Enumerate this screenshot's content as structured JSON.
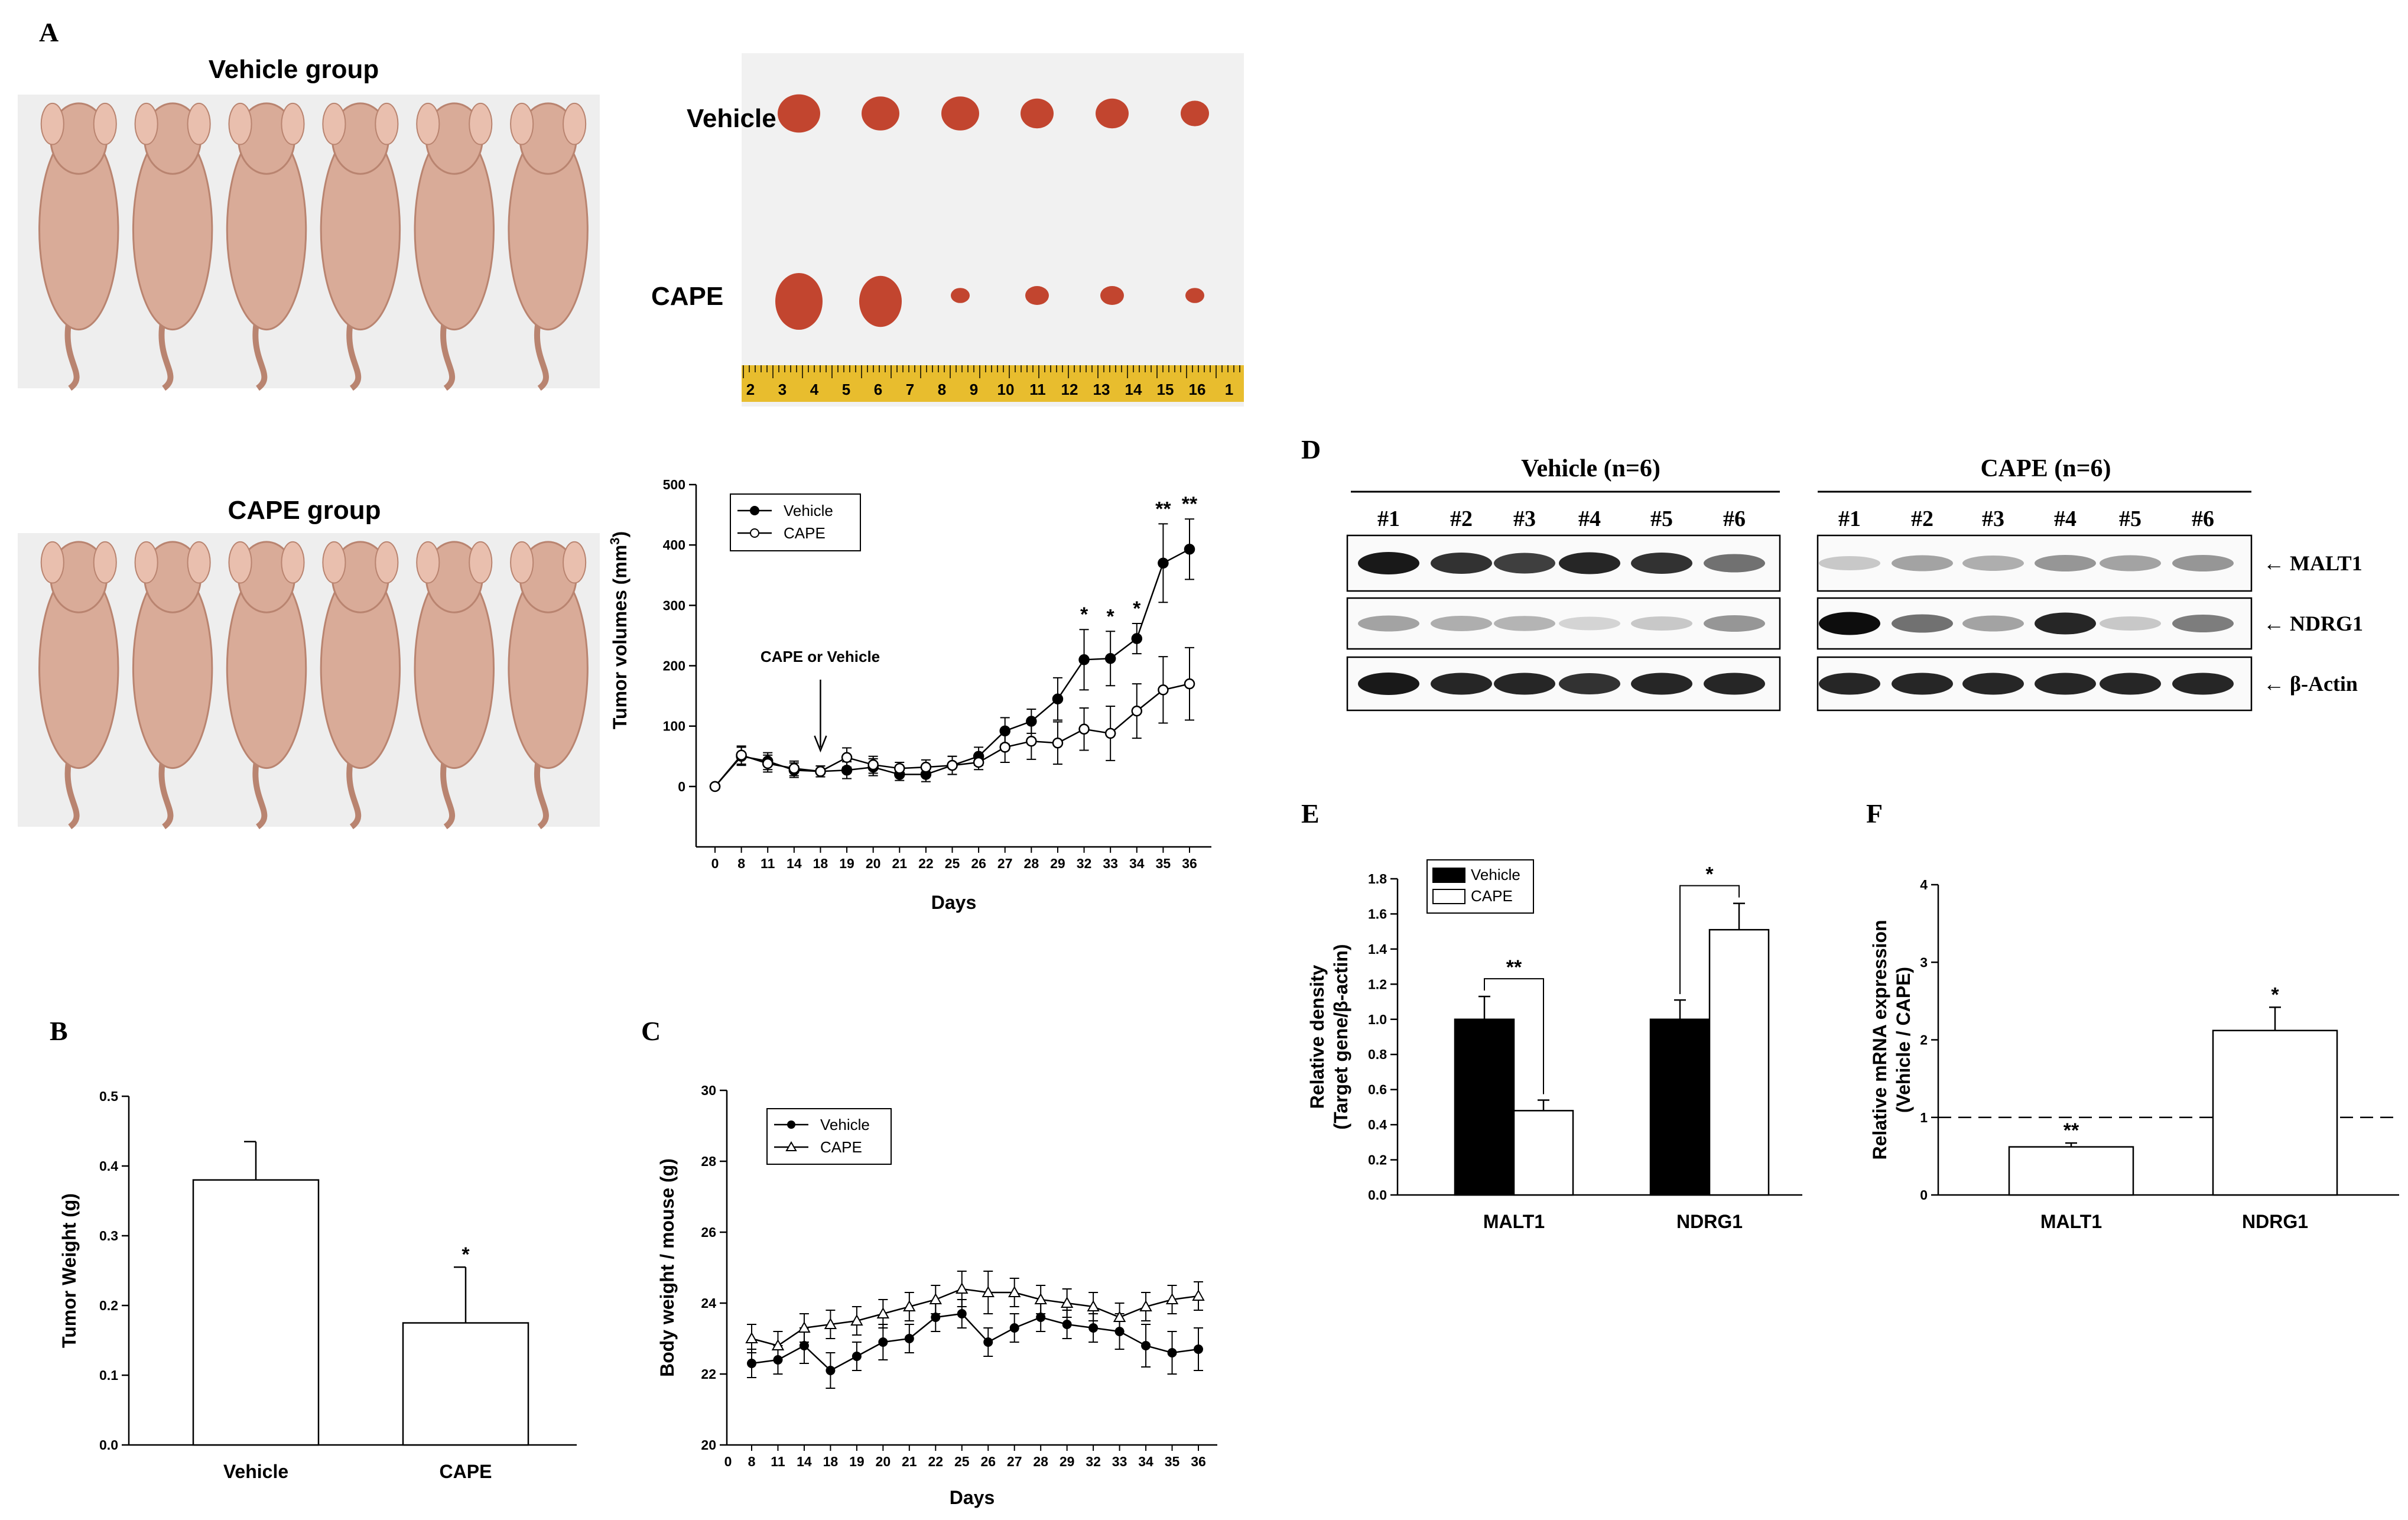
{
  "colors": {
    "skin": "#d9ab98",
    "skin_dark": "#b98470",
    "photo_bg": "#eeeeee",
    "tumor": "#c2452f",
    "ruler": "#e8bd2e",
    "black": "#000000"
  },
  "panel_a": {
    "letter": "A",
    "vehicle_group_title": "Vehicle group",
    "cape_group_title": "CAPE group",
    "tumor_row_vehicle": "Vehicle",
    "tumor_row_cape": "CAPE",
    "ruler_numbers": [
      "2",
      "3",
      "4",
      "5",
      "6",
      "7",
      "8",
      "9",
      "10",
      "11",
      "12",
      "13",
      "14",
      "15",
      "16",
      "1"
    ],
    "annotation": "CAPE or Vehicle"
  },
  "panel_b": {
    "letter": "B"
  },
  "panel_c": {
    "letter": "C"
  },
  "panel_d": {
    "letter": "D",
    "group_vehicle": "Vehicle (n=6)",
    "group_cape": "CAPE (n=6)",
    "lanes": [
      "#1",
      "#2",
      "#3",
      "#4",
      "#5",
      "#6"
    ],
    "proteins": [
      "← MALT1",
      "← NDRG1",
      "← β-Actin"
    ],
    "band_intensity": {
      "vehicle": [
        [
          0.9,
          0.8,
          0.75,
          0.85,
          0.8,
          0.55
        ],
        [
          0.35,
          0.3,
          0.28,
          0.15,
          0.2,
          0.4
        ],
        [
          0.9,
          0.85,
          0.85,
          0.8,
          0.85,
          0.85
        ]
      ],
      "cape": [
        [
          0.2,
          0.35,
          0.3,
          0.4,
          0.35,
          0.4
        ],
        [
          0.95,
          0.55,
          0.35,
          0.85,
          0.2,
          0.5
        ],
        [
          0.85,
          0.85,
          0.85,
          0.85,
          0.85,
          0.85
        ]
      ]
    }
  },
  "panel_e": {
    "letter": "E"
  },
  "panel_f": {
    "letter": "F"
  },
  "chart_data": [
    {
      "id": "tumor_volume",
      "type": "line",
      "xlabel": "Days",
      "ylabel": "Tumor volumes (mm",
      "ylabel_sup": "3",
      "ylabel_close": ")",
      "x": [
        0,
        8,
        11,
        14,
        18,
        19,
        20,
        21,
        22,
        25,
        26,
        27,
        28,
        29,
        32,
        33,
        34,
        35,
        36
      ],
      "ylim": [
        -100,
        500
      ],
      "yticks": [
        0,
        100,
        200,
        300,
        400,
        500
      ],
      "series": [
        {
          "name": "Vehicle",
          "marker": "filled",
          "values": [
            0,
            50,
            42,
            27,
            25,
            27,
            32,
            20,
            20,
            35,
            50,
            92,
            108,
            145,
            210,
            212,
            245,
            370,
            393
          ],
          "err": [
            0,
            15,
            14,
            12,
            9,
            14,
            14,
            10,
            12,
            15,
            15,
            22,
            20,
            35,
            50,
            45,
            25,
            65,
            50
          ]
        },
        {
          "name": "CAPE",
          "marker": "open",
          "values": [
            0,
            52,
            38,
            30,
            25,
            48,
            36,
            30,
            32,
            35,
            40,
            65,
            75,
            72,
            95,
            88,
            125,
            160,
            170
          ],
          "err": [
            0,
            15,
            14,
            12,
            9,
            16,
            14,
            10,
            12,
            15,
            12,
            25,
            30,
            35,
            35,
            45,
            45,
            55,
            60
          ]
        }
      ],
      "annotations": [
        {
          "x": 32,
          "text": "*"
        },
        {
          "x": 33,
          "text": "*"
        },
        {
          "x": 34,
          "text": "*"
        },
        {
          "x": 35,
          "text": "**"
        },
        {
          "x": 36,
          "text": "**"
        }
      ],
      "arrow_x": 18,
      "legend": "top-left"
    },
    {
      "id": "tumor_weight",
      "type": "bar",
      "categories": [
        "Vehicle",
        "CAPE"
      ],
      "values": [
        0.38,
        0.175
      ],
      "err": [
        0.055,
        0.08
      ],
      "ylabel": "Tumor Weight (g)",
      "ylim": [
        0,
        0.5
      ],
      "yticks": [
        "0.0",
        "0.1",
        "0.2",
        "0.3",
        "0.4",
        "0.5"
      ],
      "significance": [
        "",
        "*"
      ]
    },
    {
      "id": "body_weight",
      "type": "line",
      "xlabel": "Days",
      "ylabel": "Body weight / mouse (g)",
      "x": [
        8,
        11,
        14,
        18,
        19,
        20,
        21,
        22,
        25,
        26,
        27,
        28,
        29,
        32,
        33,
        34,
        35,
        36
      ],
      "ylim": [
        20,
        30
      ],
      "yticks": [
        20,
        22,
        24,
        26,
        28,
        30
      ],
      "series": [
        {
          "name": "Vehicle",
          "marker": "filled",
          "values": [
            22.3,
            22.4,
            22.8,
            22.1,
            22.5,
            22.9,
            23.0,
            23.6,
            23.7,
            22.9,
            23.3,
            23.6,
            23.4,
            23.3,
            23.2,
            22.8,
            22.6,
            22.7
          ],
          "err": [
            0.4,
            0.4,
            0.5,
            0.5,
            0.4,
            0.5,
            0.4,
            0.4,
            0.4,
            0.4,
            0.4,
            0.4,
            0.4,
            0.4,
            0.5,
            0.6,
            0.6,
            0.6
          ]
        },
        {
          "name": "CAPE",
          "marker": "open",
          "values": [
            23.0,
            22.8,
            23.3,
            23.4,
            23.5,
            23.7,
            23.9,
            24.1,
            24.4,
            24.3,
            24.3,
            24.1,
            24.0,
            23.9,
            23.6,
            23.9,
            24.1,
            24.2
          ],
          "err": [
            0.4,
            0.4,
            0.4,
            0.4,
            0.4,
            0.4,
            0.4,
            0.4,
            0.5,
            0.6,
            0.4,
            0.4,
            0.4,
            0.4,
            0.4,
            0.4,
            0.4,
            0.4
          ]
        }
      ],
      "legend": "top-left"
    },
    {
      "id": "relative_density",
      "type": "bar",
      "categories": [
        "MALT1",
        "NDRG1"
      ],
      "series": [
        {
          "name": "Vehicle",
          "values": [
            1.0,
            1.0
          ],
          "err": [
            0.13,
            0.11
          ]
        },
        {
          "name": "CAPE",
          "values": [
            0.48,
            1.51
          ],
          "err": [
            0.06,
            0.15
          ]
        }
      ],
      "ylabel_line1": "Relative density",
      "ylabel_line2": "(Target gene/β-actin)",
      "ylim": [
        0,
        1.8
      ],
      "yticks": [
        "0.0",
        "0.2",
        "0.4",
        "0.6",
        "0.8",
        "1.0",
        "1.2",
        "1.4",
        "1.6",
        "1.8"
      ],
      "significance": [
        "**",
        "*"
      ],
      "legend": "top-left"
    },
    {
      "id": "relative_mrna",
      "type": "bar",
      "categories": [
        "MALT1",
        "NDRG1"
      ],
      "values": [
        0.62,
        2.12
      ],
      "err": [
        0.05,
        0.3
      ],
      "ylabel_line1": "Relative mRNA expression",
      "ylabel_line2": "(Vehicle / CAPE)",
      "ylim": [
        0,
        4
      ],
      "yticks": [
        "0",
        "1",
        "2",
        "3",
        "4"
      ],
      "reference_line": 1,
      "significance": [
        "**",
        "*"
      ]
    }
  ]
}
